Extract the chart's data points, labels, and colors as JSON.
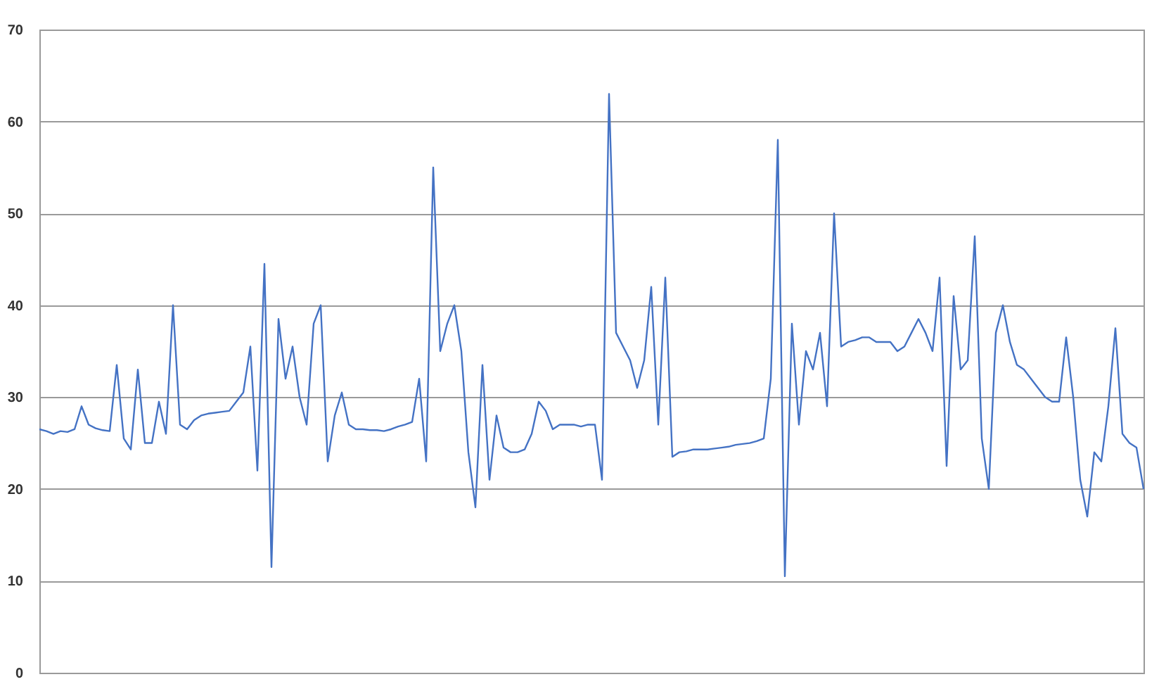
{
  "chart_data": {
    "type": "line",
    "categories": [
      null,
      null,
      null,
      null,
      null,
      null,
      null,
      null,
      null,
      null,
      null,
      null,
      null,
      null,
      null,
      null,
      null,
      null,
      null,
      null,
      null,
      null,
      null,
      null,
      null,
      null,
      null,
      null,
      null,
      null,
      null,
      null,
      null,
      null,
      null,
      null,
      null,
      null,
      null,
      null,
      null,
      null,
      null,
      null,
      null,
      null,
      null,
      null,
      null,
      null,
      null,
      null,
      null,
      null,
      null,
      null,
      null,
      null,
      null,
      null,
      null,
      null,
      null,
      null,
      null,
      null,
      null,
      null,
      null,
      null,
      null,
      null,
      null,
      null,
      null,
      null,
      null,
      null,
      null,
      null,
      null,
      null,
      null,
      null,
      null,
      null,
      null,
      null,
      null,
      null,
      null,
      null,
      null,
      null,
      null,
      null,
      null,
      null,
      null,
      null,
      null,
      null,
      null,
      null,
      null,
      null,
      null,
      null,
      null,
      null,
      null,
      null,
      null,
      null,
      null,
      null,
      null,
      null,
      null,
      null,
      null,
      null,
      null,
      null,
      null,
      null,
      null,
      null,
      null,
      null,
      null,
      null,
      null,
      null,
      null,
      null,
      null,
      null,
      null,
      null,
      null,
      null,
      null,
      null,
      null,
      null,
      null,
      null,
      null,
      null,
      null,
      null,
      null,
      null,
      null,
      null,
      null,
      null
    ],
    "series": [
      {
        "color": "#4472c4",
        "values": [
          26.5,
          26.3,
          26,
          26.3,
          26.2,
          26.5,
          29,
          27,
          26.6,
          26.4,
          26.3,
          33.5,
          25.5,
          24.3,
          33,
          25,
          25,
          29.5,
          26,
          40,
          27,
          26.5,
          27.5,
          28,
          28.2,
          28.3,
          28.4,
          28.5,
          29.5,
          30.5,
          35.5,
          22,
          44.5,
          11.5,
          38.5,
          32,
          35.5,
          30,
          27,
          38,
          40,
          23,
          28,
          30.5,
          27,
          26.5,
          26.5,
          26.4,
          26.4,
          26.3,
          26.5,
          26.8,
          27,
          27.3,
          32,
          23,
          55,
          35,
          38,
          40,
          35,
          24,
          18,
          33.5,
          21,
          28,
          24.5,
          24,
          24,
          24.3,
          26,
          29.5,
          28.5,
          26.5,
          27,
          27,
          27,
          26.8,
          27,
          27,
          21,
          63,
          37,
          35.5,
          34,
          31,
          34,
          42,
          27,
          43,
          23.5,
          24,
          24.1,
          24.3,
          24.3,
          24.3,
          24.4,
          24.5,
          24.6,
          24.8,
          24.9,
          25,
          25.2,
          25.5,
          32,
          58,
          10.5,
          38,
          27,
          35,
          33,
          37,
          29,
          50,
          35.5,
          36,
          36.2,
          36.5,
          36.5,
          36,
          36,
          36,
          35,
          35.5,
          37,
          38.5,
          37,
          35,
          43,
          22.5,
          41,
          33,
          34,
          47.5,
          25.5,
          20,
          37,
          40,
          36,
          33.5,
          33,
          32,
          31,
          30,
          29.5,
          29.5,
          36.5,
          30,
          21,
          17,
          24,
          23,
          29,
          37.5,
          26,
          25,
          24.5,
          20
        ]
      }
    ],
    "ylim": [
      0,
      70
    ],
    "yticks": [
      0,
      10,
      20,
      30,
      40,
      50,
      60,
      70
    ],
    "grid": "y",
    "tick_labels": "y"
  }
}
